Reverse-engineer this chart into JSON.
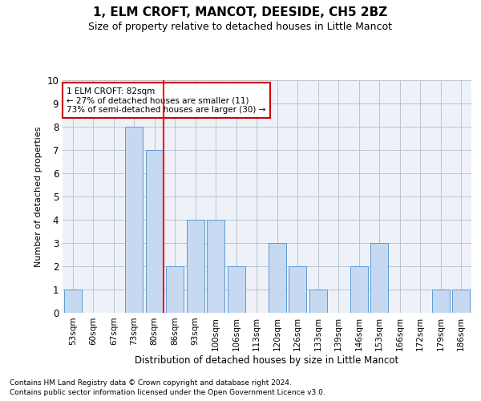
{
  "title": "1, ELM CROFT, MANCOT, DEESIDE, CH5 2BZ",
  "subtitle": "Size of property relative to detached houses in Little Mancot",
  "xlabel": "Distribution of detached houses by size in Little Mancot",
  "ylabel": "Number of detached properties",
  "categories": [
    "53sqm",
    "60sqm",
    "67sqm",
    "73sqm",
    "80sqm",
    "86sqm",
    "93sqm",
    "100sqm",
    "106sqm",
    "113sqm",
    "120sqm",
    "126sqm",
    "133sqm",
    "139sqm",
    "146sqm",
    "153sqm",
    "166sqm",
    "172sqm",
    "179sqm",
    "186sqm"
  ],
  "values": [
    1,
    0,
    0,
    8,
    7,
    2,
    4,
    4,
    2,
    0,
    3,
    2,
    1,
    0,
    2,
    3,
    0,
    0,
    1,
    1
  ],
  "bar_color": "#c6d9f0",
  "bar_edgecolor": "#5b9bd5",
  "grid_color": "#b8c4d0",
  "bg_color": "#eef2f8",
  "redline_index": 4,
  "annotation_text": "1 ELM CROFT: 82sqm\n← 27% of detached houses are smaller (11)\n73% of semi-detached houses are larger (30) →",
  "annotation_box_facecolor": "#ffffff",
  "annotation_box_edgecolor": "#cc0000",
  "ylim": [
    0,
    10
  ],
  "yticks": [
    0,
    1,
    2,
    3,
    4,
    5,
    6,
    7,
    8,
    9,
    10
  ],
  "title_fontsize": 11,
  "subtitle_fontsize": 9,
  "footer1": "Contains HM Land Registry data © Crown copyright and database right 2024.",
  "footer2": "Contains public sector information licensed under the Open Government Licence v3.0.",
  "footer_fontsize": 6.5
}
